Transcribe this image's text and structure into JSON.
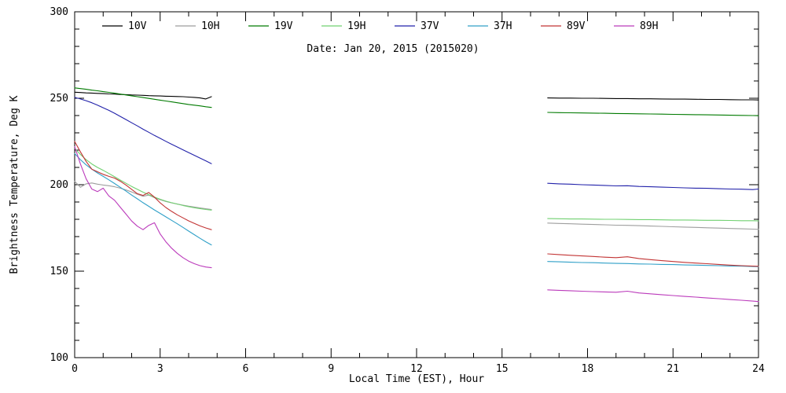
{
  "chart_data": {
    "type": "line",
    "title": "Date: Jan 20, 2015 (2015020)",
    "xlabel": "Local Time (EST), Hour",
    "ylabel": "Brightness Temperature, Deg K",
    "xlim": [
      0,
      24
    ],
    "ylim": [
      100,
      300
    ],
    "xticks": [
      0,
      3,
      6,
      9,
      12,
      15,
      18,
      21,
      24
    ],
    "yticks": [
      100,
      150,
      200,
      250,
      300
    ],
    "x_minor_step": 1,
    "y_minor_step": 10,
    "grid": false,
    "legend_position": "top-inside",
    "series": [
      {
        "name": "10V",
        "color": "#000000",
        "segments": [
          {
            "x": [
              0,
              0.2,
              0.4,
              0.6,
              0.8,
              1,
              1.2,
              1.4,
              1.6,
              1.8,
              2,
              2.2,
              2.4,
              2.6,
              2.8,
              3,
              3.2,
              3.4,
              3.6,
              3.8,
              4,
              4.2,
              4.4,
              4.6,
              4.8
            ],
            "y": [
              253.5,
              253.3,
              253.1,
              253.0,
              252.8,
              252.7,
              252.5,
              252.4,
              252.2,
              252.1,
              251.9,
              251.8,
              251.7,
              251.5,
              251.4,
              251.3,
              251.2,
              251.1,
              251.0,
              250.9,
              250.7,
              250.5,
              250.2,
              249.6,
              250.9
            ]
          },
          {
            "x": [
              16.6,
              17,
              17.4,
              17.8,
              18.2,
              18.6,
              19,
              19.4,
              19.8,
              20.2,
              20.6,
              21,
              21.4,
              21.8,
              22.2,
              22.6,
              23,
              23.4,
              23.8,
              24
            ],
            "y": [
              250.2,
              250.1,
              250.1,
              250.0,
              250.0,
              249.9,
              249.8,
              249.8,
              249.7,
              249.7,
              249.6,
              249.5,
              249.5,
              249.4,
              249.3,
              249.3,
              249.2,
              249.1,
              249.1,
              249.0
            ]
          }
        ]
      },
      {
        "name": "10H",
        "color": "#9e9e9e",
        "segments": [
          {
            "x": [
              0,
              0.2,
              0.4,
              0.6,
              0.8,
              1,
              1.2,
              1.4,
              1.6,
              1.8,
              2,
              2.2,
              2.4,
              2.6,
              2.8,
              3,
              3.2,
              3.4,
              3.6,
              3.8,
              4,
              4.2,
              4.4,
              4.6,
              4.8
            ],
            "y": [
              202.0,
              198.5,
              200.5,
              201.0,
              200.3,
              199.8,
              199.4,
              198.8,
              198.0,
              197.0,
              195.8,
              194.5,
              193.3,
              194.0,
              192.5,
              191.3,
              190.3,
              189.5,
              188.8,
              188.2,
              187.6,
              187.1,
              186.6,
              186.1,
              185.7
            ]
          },
          {
            "x": [
              16.6,
              17,
              17.4,
              17.8,
              18.2,
              18.6,
              19,
              19.4,
              19.8,
              20.2,
              20.6,
              21,
              21.4,
              21.8,
              22.2,
              22.6,
              23,
              23.4,
              23.8,
              24
            ],
            "y": [
              177.8,
              177.6,
              177.4,
              177.2,
              177.0,
              176.8,
              176.6,
              176.5,
              176.3,
              176.1,
              175.9,
              175.7,
              175.5,
              175.3,
              175.1,
              174.9,
              174.7,
              174.5,
              174.3,
              174.2
            ]
          }
        ]
      },
      {
        "name": "19V",
        "color": "#007a00",
        "segments": [
          {
            "x": [
              0,
              0.2,
              0.4,
              0.6,
              0.8,
              1,
              1.2,
              1.4,
              1.6,
              1.8,
              2,
              2.2,
              2.4,
              2.6,
              2.8,
              3,
              3.2,
              3.4,
              3.6,
              3.8,
              4,
              4.2,
              4.4,
              4.6,
              4.8
            ],
            "y": [
              256.0,
              255.6,
              255.2,
              254.7,
              254.3,
              253.8,
              253.4,
              252.9,
              252.4,
              251.9,
              251.4,
              250.9,
              250.4,
              249.9,
              249.4,
              248.9,
              248.4,
              247.9,
              247.4,
              246.9,
              246.4,
              246.0,
              245.6,
              245.1,
              244.7
            ]
          },
          {
            "x": [
              16.6,
              17,
              17.4,
              17.8,
              18.2,
              18.6,
              19,
              19.4,
              19.8,
              20.2,
              20.6,
              21,
              21.4,
              21.8,
              22.2,
              22.6,
              23,
              23.4,
              23.8,
              24
            ],
            "y": [
              241.8,
              241.7,
              241.6,
              241.5,
              241.4,
              241.3,
              241.2,
              241.1,
              241.0,
              240.9,
              240.8,
              240.7,
              240.6,
              240.5,
              240.4,
              240.3,
              240.2,
              240.1,
              240.0,
              239.9
            ]
          }
        ]
      },
      {
        "name": "19H",
        "color": "#70d070",
        "segments": [
          {
            "x": [
              0,
              0.2,
              0.4,
              0.6,
              0.8,
              1,
              1.2,
              1.4,
              1.6,
              1.8,
              2,
              2.2,
              2.4,
              2.6,
              2.8,
              3,
              3.2,
              3.4,
              3.6,
              3.8,
              4,
              4.2,
              4.4,
              4.6,
              4.8
            ],
            "y": [
              221.0,
              217.5,
              214.5,
              212.0,
              210.0,
              208.3,
              206.5,
              204.6,
              202.7,
              200.8,
              199.0,
              197.3,
              195.7,
              194.2,
              192.8,
              191.6,
              190.5,
              189.6,
              188.8,
              188.0,
              187.3,
              186.7,
              186.2,
              185.7,
              185.3
            ]
          },
          {
            "x": [
              16.6,
              17,
              17.4,
              17.8,
              18.2,
              18.6,
              19,
              19.4,
              19.8,
              20.2,
              20.6,
              21,
              21.4,
              21.8,
              22.2,
              22.6,
              23,
              23.4,
              23.8,
              24
            ],
            "y": [
              180.4,
              180.3,
              180.2,
              180.2,
              180.1,
              180.0,
              180.0,
              179.9,
              179.8,
              179.8,
              179.7,
              179.6,
              179.6,
              179.5,
              179.4,
              179.4,
              179.3,
              179.2,
              179.2,
              179.1
            ]
          }
        ]
      },
      {
        "name": "37V",
        "color": "#2222aa",
        "segments": [
          {
            "x": [
              0,
              0.2,
              0.4,
              0.6,
              0.8,
              1,
              1.2,
              1.4,
              1.6,
              1.8,
              2,
              2.2,
              2.4,
              2.6,
              2.8,
              3,
              3.2,
              3.4,
              3.6,
              3.8,
              4,
              4.2,
              4.4,
              4.6,
              4.8
            ],
            "y": [
              250.5,
              249.6,
              248.6,
              247.4,
              246.0,
              244.5,
              243.0,
              241.3,
              239.5,
              237.7,
              235.8,
              234.0,
              232.1,
              230.3,
              228.5,
              226.8,
              225.1,
              223.4,
              221.8,
              220.2,
              218.6,
              217.0,
              215.4,
              213.8,
              212.2
            ]
          },
          {
            "x": [
              16.6,
              17,
              17.4,
              17.8,
              18.2,
              18.6,
              19,
              19.4,
              19.8,
              20.2,
              20.6,
              21,
              21.4,
              21.8,
              22.2,
              22.6,
              23,
              23.4,
              23.8,
              24
            ],
            "y": [
              200.8,
              200.5,
              200.3,
              200.0,
              199.8,
              199.6,
              199.3,
              199.4,
              199.0,
              198.8,
              198.6,
              198.4,
              198.2,
              198.0,
              197.9,
              197.7,
              197.5,
              197.4,
              197.2,
              197.5
            ]
          }
        ]
      },
      {
        "name": "37H",
        "color": "#30a0c8",
        "segments": [
          {
            "x": [
              0,
              0.2,
              0.4,
              0.6,
              0.8,
              1,
              1.2,
              1.4,
              1.6,
              1.8,
              2,
              2.2,
              2.4,
              2.6,
              2.8,
              3,
              3.2,
              3.4,
              3.6,
              3.8,
              4,
              4.2,
              4.4,
              4.6,
              4.8
            ],
            "y": [
              218.0,
              214.5,
              211.5,
              209.0,
              206.8,
              204.8,
              202.8,
              200.7,
              198.5,
              196.3,
              194.0,
              191.8,
              189.6,
              187.5,
              185.4,
              183.4,
              181.4,
              179.4,
              177.4,
              175.3,
              173.2,
              171.1,
              169.0,
              167.0,
              165.2
            ]
          },
          {
            "x": [
              16.6,
              17,
              17.4,
              17.8,
              18.2,
              18.6,
              19,
              19.4,
              19.8,
              20.2,
              20.6,
              21,
              21.4,
              21.8,
              22.2,
              22.6,
              23,
              23.4,
              23.8,
              24
            ],
            "y": [
              155.6,
              155.4,
              155.2,
              155.0,
              154.9,
              154.7,
              154.5,
              154.4,
              154.2,
              154.1,
              153.9,
              153.8,
              153.6,
              153.5,
              153.3,
              153.2,
              153.0,
              152.9,
              152.7,
              152.6
            ]
          }
        ]
      },
      {
        "name": "89V",
        "color": "#c23434",
        "segments": [
          {
            "x": [
              0,
              0.2,
              0.4,
              0.6,
              0.8,
              1,
              1.2,
              1.4,
              1.6,
              1.8,
              2,
              2.2,
              2.4,
              2.6,
              2.8,
              3,
              3.2,
              3.4,
              3.6,
              3.8,
              4,
              4.2,
              4.4,
              4.6,
              4.8
            ],
            "y": [
              225.0,
              219.0,
              213.5,
              209.0,
              207.5,
              206.0,
              204.8,
              203.8,
              202.0,
              199.8,
              197.3,
              194.8,
              193.8,
              195.5,
              192.8,
              189.5,
              186.8,
              184.6,
              182.6,
              180.8,
              179.1,
              177.6,
              176.2,
              175.0,
              174.0
            ]
          },
          {
            "x": [
              16.6,
              17,
              17.4,
              17.8,
              18.2,
              18.6,
              19,
              19.4,
              19.8,
              20.2,
              20.6,
              21,
              21.4,
              21.8,
              22.2,
              22.6,
              23,
              23.4,
              23.8,
              24
            ],
            "y": [
              160.0,
              159.6,
              159.2,
              158.8,
              158.5,
              158.1,
              157.8,
              158.3,
              157.3,
              156.7,
              156.1,
              155.6,
              155.1,
              154.7,
              154.3,
              153.9,
              153.5,
              153.2,
              152.9,
              152.8
            ]
          }
        ]
      },
      {
        "name": "89H",
        "color": "#bb3abb",
        "segments": [
          {
            "x": [
              0,
              0.2,
              0.4,
              0.6,
              0.8,
              1,
              1.2,
              1.4,
              1.6,
              1.8,
              2,
              2.2,
              2.4,
              2.6,
              2.8,
              3,
              3.2,
              3.4,
              3.6,
              3.8,
              4,
              4.2,
              4.4,
              4.6,
              4.8
            ],
            "y": [
              222.0,
              212.0,
              203.5,
              197.5,
              196.0,
              198.0,
              193.5,
              191.0,
              187.0,
              183.0,
              179.0,
              176.0,
              174.0,
              176.5,
              178.0,
              171.5,
              167.0,
              163.3,
              160.3,
              157.8,
              155.8,
              154.3,
              153.2,
              152.4,
              152.0
            ]
          },
          {
            "x": [
              16.6,
              17,
              17.4,
              17.8,
              18.2,
              18.6,
              19,
              19.4,
              19.8,
              20.2,
              20.6,
              21,
              21.4,
              21.8,
              22.2,
              22.6,
              23,
              23.4,
              23.8,
              24
            ],
            "y": [
              139.2,
              138.9,
              138.7,
              138.4,
              138.2,
              138.0,
              137.8,
              138.4,
              137.4,
              136.9,
              136.4,
              135.9,
              135.4,
              135.0,
              134.5,
              134.1,
              133.6,
              133.2,
              132.7,
              132.4
            ]
          }
        ]
      }
    ]
  }
}
